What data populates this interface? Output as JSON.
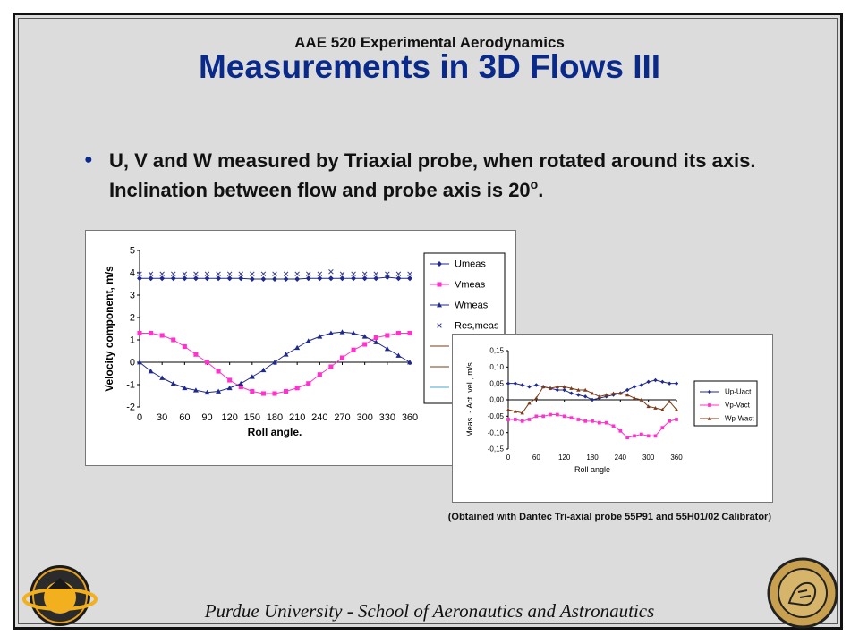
{
  "slide": {
    "course_title": "AAE 520 Experimental Aerodynamics",
    "title": "Measurements in 3D Flows III",
    "bullet_main": "U, V and W measured by Triaxial probe, when rotated around its axis. Inclination between flow and probe axis is 20",
    "bullet_sup": "o",
    "bullet_end": ".",
    "caption": "(Obtained with Dantec Tri-axial probe 55P91 and 55H01/02 Calibrator)",
    "footer": "Purdue University - School of Aeronautics and Astronautics",
    "left_logo_text": "Aeronautics & Astronautics",
    "right_logo_text": "Purdue University"
  },
  "colors": {
    "title": "#0a2a8a",
    "background": "#dcdcdc",
    "umeas": "#1f2a8c",
    "vmeas": "#ff33cc",
    "wmeas": "#1f2a8c",
    "resmeas": "#3a3f8a",
    "wp": "#7a3b1a"
  },
  "chart_data": [
    {
      "type": "line",
      "xlabel": "Roll angle.",
      "ylabel": "Velocity component, m/s",
      "xlim": [
        0,
        360
      ],
      "ylim": [
        -2,
        5
      ],
      "xticks": [
        0,
        30,
        60,
        90,
        120,
        150,
        180,
        210,
        240,
        270,
        300,
        330,
        360
      ],
      "yticks": [
        -2,
        -1,
        0,
        1,
        2,
        3,
        4,
        5
      ],
      "grid": false,
      "legend_position": "right",
      "legend_extra_rows": [
        "Res,..."
      ],
      "x": [
        0,
        15,
        30,
        45,
        60,
        75,
        90,
        105,
        120,
        135,
        150,
        165,
        180,
        195,
        210,
        225,
        240,
        255,
        270,
        285,
        300,
        315,
        330,
        345,
        360
      ],
      "series": [
        {
          "name": "Umeas",
          "marker": "diamond",
          "color": "#1f2a8c",
          "values": [
            3.75,
            3.75,
            3.75,
            3.75,
            3.75,
            3.75,
            3.75,
            3.75,
            3.75,
            3.75,
            3.72,
            3.72,
            3.72,
            3.72,
            3.72,
            3.75,
            3.75,
            3.75,
            3.75,
            3.75,
            3.75,
            3.75,
            3.8,
            3.75,
            3.75
          ]
        },
        {
          "name": "Vmeas",
          "marker": "square",
          "color": "#ff33cc",
          "values": [
            1.3,
            1.3,
            1.2,
            1.0,
            0.7,
            0.35,
            0.0,
            -0.4,
            -0.8,
            -1.1,
            -1.3,
            -1.4,
            -1.4,
            -1.3,
            -1.15,
            -0.95,
            -0.55,
            -0.2,
            0.2,
            0.55,
            0.8,
            1.1,
            1.2,
            1.3,
            1.3
          ]
        },
        {
          "name": "Wmeas",
          "marker": "triangle",
          "color": "#1f2a8c",
          "values": [
            0.0,
            -0.4,
            -0.7,
            -0.95,
            -1.15,
            -1.25,
            -1.35,
            -1.3,
            -1.15,
            -0.95,
            -0.65,
            -0.35,
            0.0,
            0.35,
            0.65,
            0.95,
            1.15,
            1.3,
            1.35,
            1.3,
            1.15,
            0.9,
            0.6,
            0.3,
            0.0
          ]
        },
        {
          "name": "Res,meas",
          "marker": "x",
          "color": "#3a3f8a",
          "values": [
            3.95,
            3.95,
            3.95,
            3.95,
            3.95,
            3.95,
            3.95,
            3.95,
            3.95,
            3.95,
            3.95,
            3.95,
            3.95,
            3.95,
            3.95,
            3.95,
            3.95,
            4.05,
            3.95,
            3.95,
            3.95,
            3.95,
            3.95,
            3.95,
            3.95
          ]
        }
      ]
    },
    {
      "type": "line",
      "xlabel": "Roll angle",
      "ylabel": "Meas. - Act. vel., m/s",
      "xlim": [
        0,
        360
      ],
      "ylim": [
        -0.15,
        0.15
      ],
      "xticks": [
        0,
        60,
        120,
        180,
        240,
        300,
        360
      ],
      "yticks": [
        -0.15,
        -0.1,
        -0.05,
        0.0,
        0.05,
        0.1,
        0.15
      ],
      "ytick_labels": [
        "-0,15",
        "-0,10",
        "-0,05",
        "0,00",
        "0,05",
        "0,10",
        "0,15"
      ],
      "grid": false,
      "legend_position": "right",
      "x": [
        0,
        15,
        30,
        45,
        60,
        75,
        90,
        105,
        120,
        135,
        150,
        165,
        180,
        195,
        210,
        225,
        240,
        255,
        270,
        285,
        300,
        315,
        330,
        345,
        360
      ],
      "series": [
        {
          "name": "Up-Uact",
          "marker": "diamond",
          "color": "#1f2a8c",
          "values": [
            0.05,
            0.05,
            0.045,
            0.04,
            0.045,
            0.04,
            0.035,
            0.03,
            0.03,
            0.02,
            0.015,
            0.01,
            0.0,
            0.005,
            0.01,
            0.015,
            0.02,
            0.03,
            0.04,
            0.045,
            0.055,
            0.06,
            0.055,
            0.05,
            0.05
          ]
        },
        {
          "name": "Vp-Vact",
          "marker": "square",
          "color": "#ff33cc",
          "values": [
            -0.06,
            -0.06,
            -0.065,
            -0.06,
            -0.05,
            -0.05,
            -0.045,
            -0.045,
            -0.05,
            -0.055,
            -0.06,
            -0.065,
            -0.065,
            -0.07,
            -0.07,
            -0.08,
            -0.095,
            -0.115,
            -0.11,
            -0.105,
            -0.11,
            -0.11,
            -0.085,
            -0.065,
            -0.06
          ]
        },
        {
          "name": "Wp-Wact",
          "marker": "triangle",
          "color": "#7a3b1a",
          "values": [
            -0.03,
            -0.035,
            -0.04,
            -0.01,
            0.005,
            0.04,
            0.035,
            0.04,
            0.04,
            0.035,
            0.03,
            0.03,
            0.02,
            0.01,
            0.015,
            0.02,
            0.02,
            0.015,
            0.005,
            0.0,
            -0.02,
            -0.025,
            -0.03,
            -0.005,
            -0.03
          ]
        }
      ]
    }
  ]
}
